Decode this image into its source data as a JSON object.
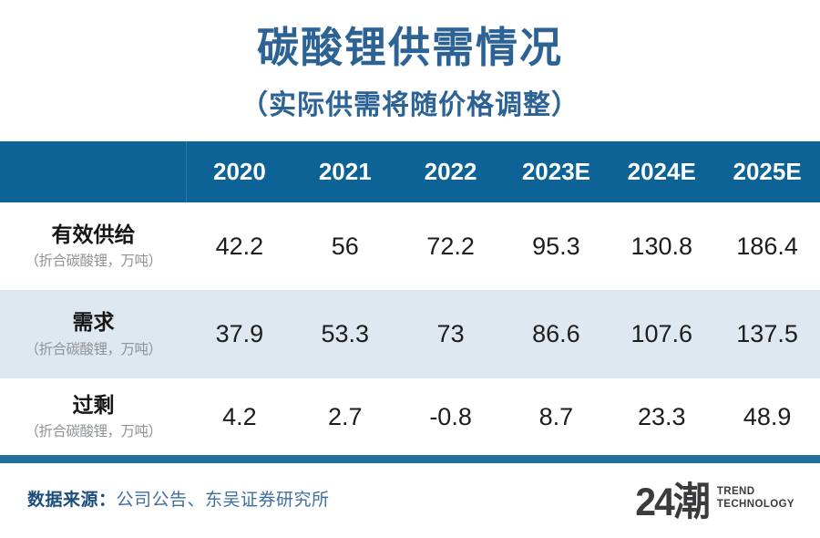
{
  "title": "碳酸锂供需情况",
  "subtitle": "（实际供需将随价格调整）",
  "colors": {
    "title-blue": "#2c6394",
    "header-blue": "#0d6296",
    "row-alt": "#dfe8f0",
    "bar-blue": "#23709f",
    "negative-red": "#c23b32",
    "source-label-blue": "#1c4d7c",
    "source-value-blue": "#3f6f9e",
    "logo-gray": "#3b3b3d"
  },
  "table": {
    "columns": [
      "2020",
      "2021",
      "2022",
      "2023E",
      "2024E",
      "2025E"
    ],
    "rows": [
      {
        "label": "有效供给",
        "sublabel": "（折合碳酸锂，万吨）",
        "values": [
          "42.2",
          "56",
          "72.2",
          "95.3",
          "130.8",
          "186.4"
        ]
      },
      {
        "label": "需求",
        "sublabel": "（折合碳酸锂，万吨）",
        "values": [
          "37.9",
          "53.3",
          "73",
          "86.6",
          "107.6",
          "137.5"
        ]
      },
      {
        "label": "过剩",
        "sublabel": "（折合碳酸锂，万吨）",
        "values": [
          "4.2",
          "2.7",
          "-0.8",
          "8.7",
          "23.3",
          "48.9"
        ]
      }
    ]
  },
  "footer": {
    "source_label": "数据来源：",
    "source_value": "公司公告、东吴证券研究所"
  },
  "logo": {
    "mark": "24潮",
    "line1": "TREND",
    "line2": "TECHNOLOGY"
  },
  "chart_data": {
    "type": "table",
    "title": "碳酸锂供需情况",
    "subtitle": "（实际供需将随价格调整）",
    "columns": [
      "2020",
      "2021",
      "2022",
      "2023E",
      "2024E",
      "2025E"
    ],
    "rows": [
      {
        "label": "有效供给（折合碳酸锂，万吨）",
        "values": [
          42.2,
          56,
          72.2,
          95.3,
          130.8,
          186.4
        ]
      },
      {
        "label": "需求（折合碳酸锂，万吨）",
        "values": [
          37.9,
          53.3,
          73,
          86.6,
          107.6,
          137.5
        ]
      },
      {
        "label": "过剩（折合碳酸锂，万吨）",
        "values": [
          4.2,
          2.7,
          -0.8,
          8.7,
          23.3,
          48.9
        ]
      }
    ],
    "notes": "2022 过剩 value is negative and shown in red",
    "source": "公司公告、东吴证券研究所"
  }
}
